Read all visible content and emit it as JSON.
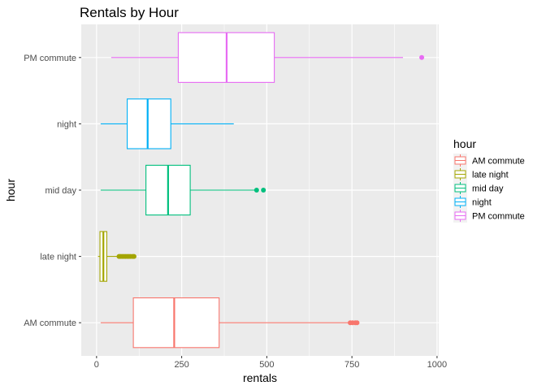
{
  "chart_data": {
    "type": "boxplot",
    "title": "Rentals by Hour",
    "xlabel": "rentals",
    "ylabel": "hour",
    "xlim": [
      -45,
      1005
    ],
    "xticks": [
      0,
      250,
      500,
      750,
      1000
    ],
    "orientation": "horizontal",
    "grid": true,
    "legend_title": "hour",
    "legend_position": "right",
    "categories": [
      "AM commute",
      "late night",
      "mid day",
      "night",
      "PM commute"
    ],
    "series": [
      {
        "name": "AM commute",
        "color": "#F8766D",
        "min": 12,
        "q1": 108,
        "median": 228,
        "q3": 360,
        "max": 740,
        "outliers": [
          745,
          752,
          760,
          765
        ]
      },
      {
        "name": "late night",
        "color": "#A3A500",
        "min": 4,
        "q1": 10,
        "median": 20,
        "q3": 30,
        "max": 63,
        "outliers": [
          66,
          70,
          75,
          80,
          85,
          90,
          95,
          100,
          106,
          110
        ]
      },
      {
        "name": "mid day",
        "color": "#00BF7D",
        "min": 12,
        "q1": 145,
        "median": 210,
        "q3": 275,
        "max": 465,
        "outliers": [
          470,
          490
        ]
      },
      {
        "name": "night",
        "color": "#00B0F6",
        "min": 12,
        "q1": 90,
        "median": 150,
        "q3": 218,
        "max": 403,
        "outliers": []
      },
      {
        "name": "PM commute",
        "color": "#E76BF3",
        "min": 43,
        "q1": 240,
        "median": 382,
        "q3": 522,
        "max": 900,
        "outliers": [
          955
        ]
      }
    ]
  }
}
